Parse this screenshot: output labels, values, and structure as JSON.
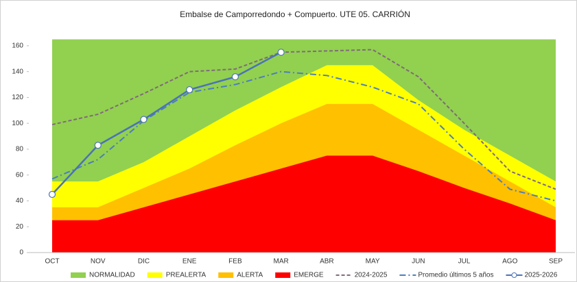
{
  "chart_data": {
    "type": "line",
    "title": "Embalse de Camporredondo + Compuerto. UTE 05. CARRIÓN",
    "categories": [
      "OCT",
      "NOV",
      "DIC",
      "ENE",
      "FEB",
      "MAR",
      "ABR",
      "MAY",
      "JUN",
      "JUL",
      "AGO",
      "SEP"
    ],
    "ylim": [
      0,
      170
    ],
    "yticks": [
      0,
      20,
      40,
      60,
      80,
      100,
      120,
      140,
      160
    ],
    "series": [
      {
        "name": "NORMALIDAD",
        "color": "#92d050",
        "kind": "area",
        "values": [
          165,
          165,
          165,
          165,
          165,
          165,
          165,
          165,
          165,
          165,
          165,
          165
        ]
      },
      {
        "name": "PREALERTA",
        "color": "#ffff00",
        "kind": "area",
        "values": [
          55,
          55,
          70,
          90,
          110,
          128,
          145,
          145,
          118,
          95,
          75,
          55
        ]
      },
      {
        "name": "ALERTA",
        "color": "#ffc000",
        "kind": "area",
        "values": [
          35,
          35,
          50,
          65,
          83,
          100,
          115,
          115,
          95,
          75,
          55,
          35
        ]
      },
      {
        "name": "EMERGE",
        "color": "#ff0000",
        "kind": "area",
        "values": [
          25,
          25,
          35,
          45,
          55,
          65,
          75,
          75,
          63,
          50,
          38,
          25
        ]
      },
      {
        "name": "2024-2025",
        "color": "#7f6a7a",
        "kind": "line",
        "dash": "dashed",
        "values": [
          99,
          107,
          123,
          140,
          142,
          155,
          156,
          157,
          136,
          100,
          63,
          49
        ]
      },
      {
        "name": "Promedio últimos 5 años",
        "color": "#4a7ebf",
        "kind": "line",
        "dash": "dashdot",
        "values": [
          57,
          72,
          102,
          124,
          130,
          140,
          137,
          128,
          115,
          80,
          49,
          40
        ]
      },
      {
        "name": "2025-2026",
        "color": "#4a72b8",
        "kind": "line",
        "dash": "solid",
        "marker": true,
        "values": [
          45,
          83,
          103,
          126,
          136,
          155,
          null,
          null,
          null,
          null,
          null,
          null
        ]
      }
    ]
  }
}
